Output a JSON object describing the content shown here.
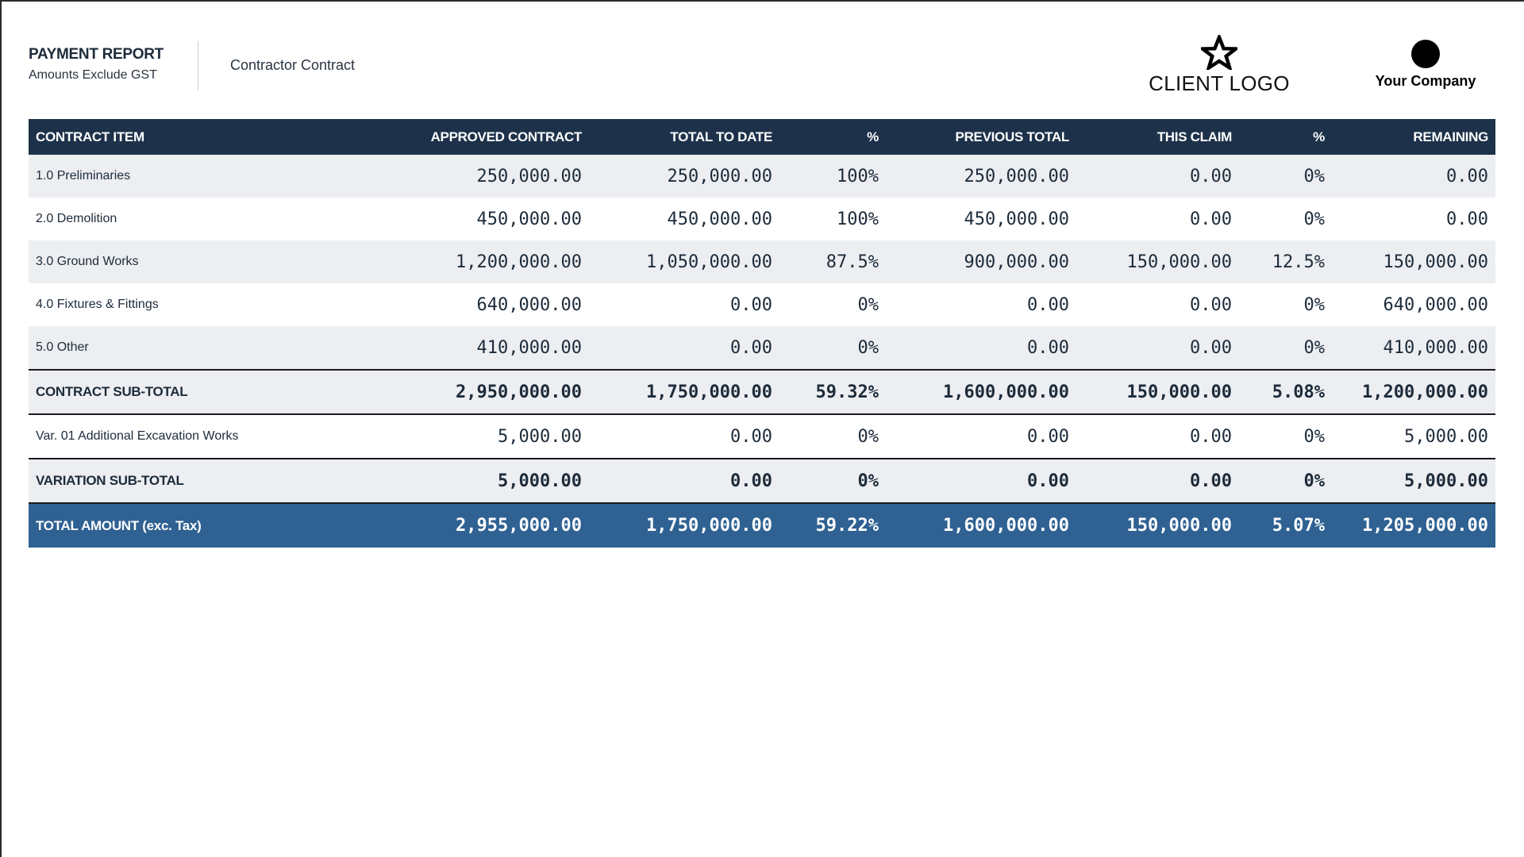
{
  "header": {
    "title": "PAYMENT REPORT",
    "subtitle": "Amounts Exclude GST",
    "contract_name": "Contractor Contract",
    "client_logo_text": "CLIENT LOGO",
    "company_text": "Your Company"
  },
  "columns": [
    "CONTRACT ITEM",
    "APPROVED CONTRACT",
    "TOTAL TO DATE",
    "%",
    "PREVIOUS TOTAL",
    "THIS CLAIM",
    "%",
    "REMAINING"
  ],
  "items": [
    {
      "item": "1.0 Preliminaries",
      "approved": "250,000.00",
      "total": "250,000.00",
      "pct": "100%",
      "previous": "250,000.00",
      "claim": "0.00",
      "claim_pct": "0%",
      "remaining": "0.00"
    },
    {
      "item": "2.0 Demolition",
      "approved": "450,000.00",
      "total": "450,000.00",
      "pct": "100%",
      "previous": "450,000.00",
      "claim": "0.00",
      "claim_pct": "0%",
      "remaining": "0.00"
    },
    {
      "item": "3.0 Ground Works",
      "approved": "1,200,000.00",
      "total": "1,050,000.00",
      "pct": "87.5%",
      "previous": "900,000.00",
      "claim": "150,000.00",
      "claim_pct": "12.5%",
      "remaining": "150,000.00"
    },
    {
      "item": "4.0 Fixtures & Fittings",
      "approved": "640,000.00",
      "total": "0.00",
      "pct": "0%",
      "previous": "0.00",
      "claim": "0.00",
      "claim_pct": "0%",
      "remaining": "640,000.00"
    },
    {
      "item": "5.0 Other",
      "approved": "410,000.00",
      "total": "0.00",
      "pct": "0%",
      "previous": "0.00",
      "claim": "0.00",
      "claim_pct": "0%",
      "remaining": "410,000.00"
    }
  ],
  "contract_subtotal": {
    "item": "CONTRACT SUB-TOTAL",
    "approved": "2,950,000.00",
    "total": "1,750,000.00",
    "pct": "59.32%",
    "previous": "1,600,000.00",
    "claim": "150,000.00",
    "claim_pct": "5.08%",
    "remaining": "1,200,000.00"
  },
  "variations": [
    {
      "item": "Var. 01 Additional Excavation Works",
      "approved": "5,000.00",
      "total": "0.00",
      "pct": "0%",
      "previous": "0.00",
      "claim": "0.00",
      "claim_pct": "0%",
      "remaining": "5,000.00"
    }
  ],
  "variation_subtotal": {
    "item": "VARIATION SUB-TOTAL",
    "approved": "5,000.00",
    "total": "0.00",
    "pct": "0%",
    "previous": "0.00",
    "claim": "0.00",
    "claim_pct": "0%",
    "remaining": "5,000.00"
  },
  "grand_total": {
    "item": "TOTAL AMOUNT (exc. Tax)",
    "approved": "2,955,000.00",
    "total": "1,750,000.00",
    "pct": "59.22%",
    "previous": "1,600,000.00",
    "claim": "150,000.00",
    "claim_pct": "5.07%",
    "remaining": "1,205,000.00"
  },
  "colors": {
    "header_bg": "#1d324a",
    "total_bg": "#2f6193",
    "row_shade": "#eceef1",
    "text": "#1d2b3a"
  },
  "icons": {
    "client_logo": "star-icon",
    "company_logo": "circle-icon"
  }
}
